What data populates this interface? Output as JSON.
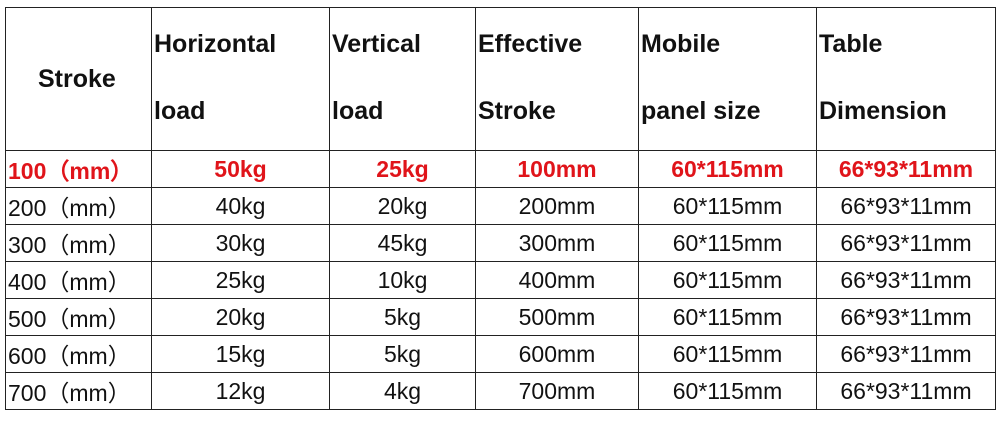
{
  "table": {
    "headers": [
      {
        "line1": "Stroke",
        "line2": ""
      },
      {
        "line1": "Horizontal",
        "line2": "load"
      },
      {
        "line1": "Vertical",
        "line2": "load"
      },
      {
        "line1": "Effective",
        "line2": "Stroke"
      },
      {
        "line1": "Mobile",
        "line2": "panel size"
      },
      {
        "line1": "Table",
        "line2": "Dimension"
      }
    ],
    "highlight_color": "#e0141a",
    "rows": [
      [
        "100（mm）",
        "50kg",
        "25kg",
        "100mm",
        "60*115mm",
        "66*93*11mm"
      ],
      [
        "200（mm）",
        "40kg",
        "20kg",
        "200mm",
        "60*115mm",
        "66*93*11mm"
      ],
      [
        "300（mm）",
        "30kg",
        "45kg",
        "300mm",
        "60*115mm",
        "66*93*11mm"
      ],
      [
        "400（mm）",
        "25kg",
        "10kg",
        "400mm",
        "60*115mm",
        "66*93*11mm"
      ],
      [
        "500（mm）",
        "20kg",
        "5kg",
        "500mm",
        "60*115mm",
        "66*93*11mm"
      ],
      [
        "600（mm）",
        "15kg",
        "5kg",
        "600mm",
        "60*115mm",
        "66*93*11mm"
      ],
      [
        "700（mm）",
        "12kg",
        "4kg",
        "700mm",
        "60*115mm",
        "66*93*11mm"
      ]
    ]
  }
}
